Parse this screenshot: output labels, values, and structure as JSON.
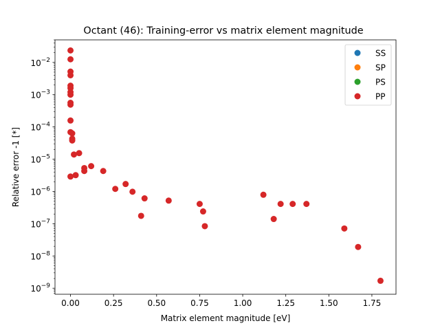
{
  "chart_data": {
    "type": "scatter",
    "title": "Octant (46): Training-error vs matrix element magnitude",
    "xlabel": "Matrix element magnitude [eV]",
    "ylabel": "Relative error -1 [*]",
    "xlim": [
      -0.09,
      1.89
    ],
    "ylim": [
      6.5e-10,
      0.05
    ],
    "yscale": "log",
    "x_ticks": [
      {
        "value": 0.0,
        "label": "0.00"
      },
      {
        "value": 0.25,
        "label": "0.25"
      },
      {
        "value": 0.5,
        "label": "0.50"
      },
      {
        "value": 0.75,
        "label": "0.75"
      },
      {
        "value": 1.0,
        "label": "1.00"
      },
      {
        "value": 1.25,
        "label": "1.25"
      },
      {
        "value": 1.5,
        "label": "1.50"
      },
      {
        "value": 1.75,
        "label": "1.75"
      }
    ],
    "y_ticks": [
      {
        "value": 1e-09,
        "label": "10",
        "exp": "−9"
      },
      {
        "value": 1e-08,
        "label": "10",
        "exp": "−8"
      },
      {
        "value": 1e-07,
        "label": "10",
        "exp": "−7"
      },
      {
        "value": 1e-06,
        "label": "10",
        "exp": "−6"
      },
      {
        "value": 1e-05,
        "label": "10",
        "exp": "−5"
      },
      {
        "value": 0.0001,
        "label": "10",
        "exp": "−4"
      },
      {
        "value": 0.001,
        "label": "10",
        "exp": "−3"
      },
      {
        "value": 0.01,
        "label": "10",
        "exp": "−2"
      }
    ],
    "grid": false,
    "legend_position": "top-right",
    "series": [
      {
        "name": "SS",
        "color": "#1f77b4",
        "points": []
      },
      {
        "name": "SP",
        "color": "#ff7f0e",
        "points": []
      },
      {
        "name": "PS",
        "color": "#2ca02c",
        "points": []
      },
      {
        "name": "PP",
        "color": "#d62728",
        "points": [
          {
            "x": 0.0,
            "y": 0.0235
          },
          {
            "x": 0.0,
            "y": 0.0125
          },
          {
            "x": 0.0,
            "y": 0.0052
          },
          {
            "x": 0.0,
            "y": 0.004
          },
          {
            "x": 0.0,
            "y": 0.0019
          },
          {
            "x": 0.0,
            "y": 0.0016
          },
          {
            "x": 0.0,
            "y": 0.0012
          },
          {
            "x": 0.0,
            "y": 0.001
          },
          {
            "x": 0.0,
            "y": 0.00056
          },
          {
            "x": 0.0,
            "y": 0.00049
          },
          {
            "x": 0.0,
            "y": 0.000158
          },
          {
            "x": 0.0,
            "y": 6.9e-05
          },
          {
            "x": 0.01,
            "y": 6.3e-05
          },
          {
            "x": 0.01,
            "y": 4.3e-05
          },
          {
            "x": 0.01,
            "y": 3.8e-05
          },
          {
            "x": 0.02,
            "y": 1.4e-05
          },
          {
            "x": 0.05,
            "y": 1.54e-05
          },
          {
            "x": 0.0,
            "y": 2.9e-06
          },
          {
            "x": 0.03,
            "y": 3.2e-06
          },
          {
            "x": 0.08,
            "y": 5.3e-06
          },
          {
            "x": 0.08,
            "y": 4.3e-06
          },
          {
            "x": 0.12,
            "y": 6.1e-06
          },
          {
            "x": 0.19,
            "y": 4.3e-06
          },
          {
            "x": 0.26,
            "y": 1.2e-06
          },
          {
            "x": 0.32,
            "y": 1.7e-06
          },
          {
            "x": 0.36,
            "y": 9.8e-07
          },
          {
            "x": 0.41,
            "y": 1.75e-07
          },
          {
            "x": 0.43,
            "y": 6.1e-07
          },
          {
            "x": 0.57,
            "y": 5.2e-07
          },
          {
            "x": 0.75,
            "y": 4.1e-07
          },
          {
            "x": 0.77,
            "y": 2.4e-07
          },
          {
            "x": 0.78,
            "y": 8.4e-08
          },
          {
            "x": 1.12,
            "y": 7.9e-07
          },
          {
            "x": 1.18,
            "y": 1.4e-07
          },
          {
            "x": 1.22,
            "y": 4.1e-07
          },
          {
            "x": 1.29,
            "y": 4.1e-07
          },
          {
            "x": 1.37,
            "y": 4.1e-07
          },
          {
            "x": 1.59,
            "y": 7.1e-08
          },
          {
            "x": 1.67,
            "y": 1.9e-08
          },
          {
            "x": 1.8,
            "y": 1.7e-09
          }
        ]
      }
    ]
  }
}
